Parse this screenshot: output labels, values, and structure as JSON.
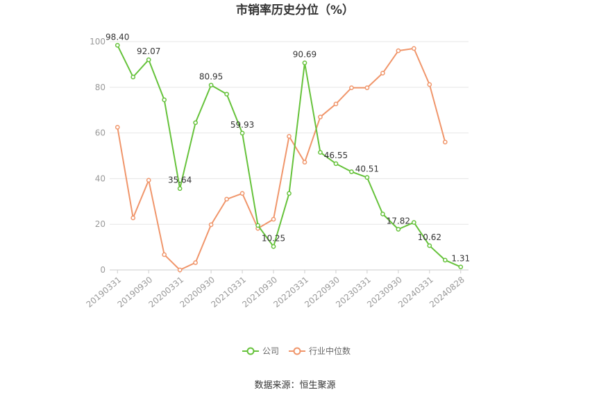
{
  "chart_data": {
    "type": "line",
    "title": "市销率历史分位（%）",
    "xlabel": "",
    "ylabel": "",
    "ylim": [
      0,
      100
    ],
    "yticks": [
      0,
      20,
      40,
      60,
      80,
      100
    ],
    "grid": true,
    "legend_position": "bottom",
    "x": [
      "20190331",
      "20190630",
      "20190930",
      "20191231",
      "20200331",
      "20200630",
      "20200930",
      "20201231",
      "20210331",
      "20210630",
      "20210930",
      "20211231",
      "20220331",
      "20220630",
      "20220930",
      "20221231",
      "20230331",
      "20230630",
      "20230930",
      "20231231",
      "20240331",
      "20240630",
      "20240828"
    ],
    "x_tick_labels": [
      "20190331",
      "20190930",
      "20200331",
      "20200930",
      "20210331",
      "20210930",
      "20220331",
      "20220930",
      "20230331",
      "20230930",
      "20240331",
      "20240828"
    ],
    "series": [
      {
        "name": "公司",
        "color": "#65c23a",
        "values": [
          98.4,
          84.5,
          92.07,
          74.5,
          35.64,
          64.5,
          80.95,
          77.0,
          59.93,
          19.5,
          10.25,
          33.5,
          90.69,
          51.5,
          46.55,
          43.0,
          40.51,
          24.5,
          17.82,
          20.8,
          10.62,
          4.3,
          1.31
        ],
        "labels": {
          "0": "98.40",
          "2": "92.07",
          "4": "35.64",
          "6": "80.95",
          "8": "59.93",
          "10": "10.25",
          "12": "90.69",
          "14": "46.55",
          "16": "40.51",
          "18": "17.82",
          "20": "10.62",
          "22": "1.31"
        }
      },
      {
        "name": "行业中位数",
        "color": "#f0956a",
        "values": [
          62.5,
          22.8,
          39.3,
          6.7,
          0.0,
          3.2,
          19.8,
          31.0,
          33.5,
          18.2,
          22.2,
          58.5,
          47.2,
          67.0,
          72.7,
          79.8,
          79.8,
          86.2,
          96.0,
          97.0,
          81.2,
          56.0,
          null
        ]
      }
    ]
  },
  "source": "数据来源：恒生聚源"
}
